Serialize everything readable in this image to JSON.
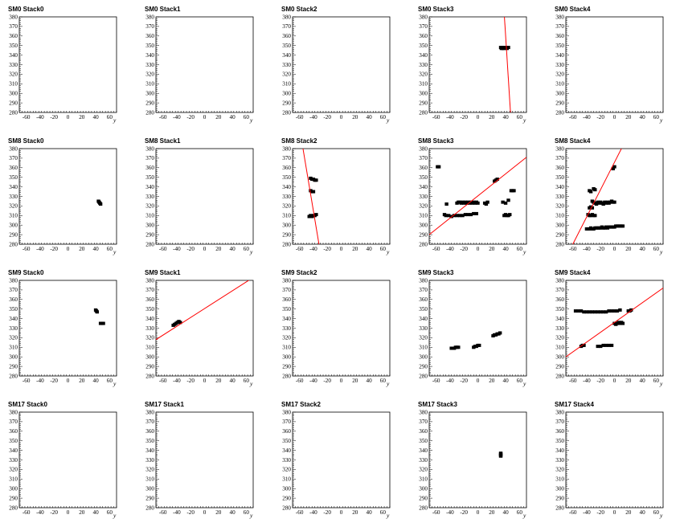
{
  "chart_data": {
    "type": "scatter",
    "layout": {
      "rows": 4,
      "cols": 5
    },
    "xlim": [
      -70,
      70
    ],
    "ylim": [
      280,
      380
    ],
    "xticks": [
      -60,
      -40,
      -20,
      0,
      20,
      40,
      60
    ],
    "yticks": [
      280,
      290,
      300,
      310,
      320,
      330,
      340,
      350,
      360,
      370,
      380
    ],
    "xlabel": "y",
    "ylabel": "",
    "marker_color": "#000000",
    "fit_color": "#ff0000",
    "panels": [
      {
        "title": "SM0 Stack0",
        "points": [],
        "fit": null
      },
      {
        "title": "SM0 Stack1",
        "points": [],
        "fit": null
      },
      {
        "title": "SM0 Stack2",
        "points": [],
        "fit": null
      },
      {
        "title": "SM0 Stack3",
        "points": [
          [
            33,
            348
          ],
          [
            34,
            347
          ],
          [
            35,
            348
          ],
          [
            36,
            347
          ],
          [
            37,
            348
          ],
          [
            38,
            347
          ],
          [
            39,
            348
          ],
          [
            41,
            348
          ],
          [
            42,
            347
          ],
          [
            44,
            348
          ]
        ],
        "fit": [
          [
            38,
            383
          ],
          [
            47,
            280
          ]
        ]
      },
      {
        "title": "SM0 Stack4",
        "points": [],
        "fit": null
      },
      {
        "title": "SM8 Stack0",
        "points": [
          [
            44,
            325
          ],
          [
            45,
            324
          ],
          [
            46,
            323
          ],
          [
            47,
            322
          ]
        ],
        "fit": null
      },
      {
        "title": "SM8 Stack1",
        "points": [],
        "fit": null
      },
      {
        "title": "SM8 Stack2",
        "points": [
          [
            -44,
            336
          ],
          [
            -42,
            335
          ],
          [
            -40,
            335
          ],
          [
            -44,
            349
          ],
          [
            -42,
            348
          ],
          [
            -40,
            348
          ],
          [
            -38,
            347
          ],
          [
            -36,
            347
          ],
          [
            -46,
            309
          ],
          [
            -44,
            310
          ],
          [
            -42,
            309
          ],
          [
            -40,
            310
          ],
          [
            -38,
            310
          ],
          [
            -36,
            311
          ]
        ],
        "fit": [
          [
            -55,
            380
          ],
          [
            -32,
            280
          ]
        ]
      },
      {
        "title": "SM8 Stack3",
        "points": [
          [
            -58,
            361
          ],
          [
            -56,
            361
          ],
          [
            -45,
            322
          ],
          [
            -48,
            311
          ],
          [
            -46,
            310
          ],
          [
            -42,
            310
          ],
          [
            -38,
            309
          ],
          [
            -34,
            310
          ],
          [
            -30,
            310
          ],
          [
            -26,
            310
          ],
          [
            -22,
            310
          ],
          [
            -18,
            311
          ],
          [
            -14,
            311
          ],
          [
            -10,
            311
          ],
          [
            -6,
            312
          ],
          [
            -2,
            312
          ],
          [
            -30,
            323
          ],
          [
            -28,
            324
          ],
          [
            -26,
            324
          ],
          [
            -24,
            323
          ],
          [
            -22,
            324
          ],
          [
            -20,
            323
          ],
          [
            -18,
            324
          ],
          [
            -16,
            323
          ],
          [
            -14,
            324
          ],
          [
            -12,
            323
          ],
          [
            -10,
            324
          ],
          [
            -8,
            323
          ],
          [
            -6,
            324
          ],
          [
            -4,
            323
          ],
          [
            -2,
            324
          ],
          [
            0,
            323
          ],
          [
            10,
            323
          ],
          [
            12,
            322
          ],
          [
            14,
            324
          ],
          [
            24,
            346
          ],
          [
            26,
            347
          ],
          [
            28,
            348
          ],
          [
            38,
            310
          ],
          [
            40,
            311
          ],
          [
            42,
            310
          ],
          [
            44,
            310
          ],
          [
            46,
            311
          ],
          [
            44,
            326
          ],
          [
            48,
            336
          ],
          [
            50,
            336
          ],
          [
            52,
            336
          ],
          [
            36,
            324
          ],
          [
            40,
            323
          ]
        ],
        "fit": [
          [
            -70,
            290
          ],
          [
            70,
            371
          ]
        ]
      },
      {
        "title": "SM8 Stack4",
        "points": [
          [
            -38,
            311
          ],
          [
            -36,
            310
          ],
          [
            -34,
            310
          ],
          [
            -32,
            311
          ],
          [
            -30,
            310
          ],
          [
            -28,
            310
          ],
          [
            -36,
            336
          ],
          [
            -34,
            335
          ],
          [
            -30,
            338
          ],
          [
            -28,
            337
          ],
          [
            -32,
            325
          ],
          [
            -30,
            324
          ],
          [
            -28,
            323
          ],
          [
            -26,
            322
          ],
          [
            -24,
            324
          ],
          [
            -22,
            323
          ],
          [
            -20,
            324
          ],
          [
            -18,
            323
          ],
          [
            -16,
            322
          ],
          [
            -14,
            324
          ],
          [
            -12,
            323
          ],
          [
            -10,
            324
          ],
          [
            -8,
            323
          ],
          [
            -6,
            324
          ],
          [
            -4,
            325
          ],
          [
            -2,
            324
          ],
          [
            0,
            324
          ],
          [
            -2,
            359
          ],
          [
            0,
            361
          ],
          [
            -40,
            296
          ],
          [
            -38,
            296
          ],
          [
            -36,
            296
          ],
          [
            -34,
            297
          ],
          [
            -32,
            296
          ],
          [
            -30,
            296
          ],
          [
            -28,
            297
          ],
          [
            -26,
            297
          ],
          [
            -24,
            297
          ],
          [
            -22,
            297
          ],
          [
            -20,
            297
          ],
          [
            -18,
            298
          ],
          [
            -16,
            297
          ],
          [
            -14,
            297
          ],
          [
            -12,
            298
          ],
          [
            -10,
            297
          ],
          [
            -8,
            298
          ],
          [
            -6,
            298
          ],
          [
            -4,
            298
          ],
          [
            -2,
            298
          ],
          [
            0,
            298
          ],
          [
            2,
            299
          ],
          [
            4,
            299
          ],
          [
            6,
            299
          ],
          [
            8,
            299
          ],
          [
            10,
            299
          ],
          [
            12,
            299
          ],
          [
            -36,
            318
          ],
          [
            -34,
            319
          ],
          [
            -32,
            318
          ]
        ],
        "fit": [
          [
            -60,
            280
          ],
          [
            10,
            380
          ]
        ]
      },
      {
        "title": "SM9 Stack0",
        "points": [
          [
            40,
            349
          ],
          [
            41,
            348
          ],
          [
            42,
            347
          ],
          [
            47,
            335
          ],
          [
            49,
            335
          ],
          [
            51,
            335
          ]
        ],
        "fit": null
      },
      {
        "title": "SM9 Stack1",
        "points": [
          [
            -45,
            333
          ],
          [
            -43,
            334
          ],
          [
            -41,
            335
          ],
          [
            -39,
            336
          ],
          [
            -37,
            337
          ],
          [
            -35,
            336
          ]
        ],
        "fit": [
          [
            -70,
            318
          ],
          [
            70,
            383
          ]
        ]
      },
      {
        "title": "SM9 Stack2",
        "points": [],
        "fit": null
      },
      {
        "title": "SM9 Stack3",
        "points": [
          [
            -38,
            309
          ],
          [
            -36,
            309
          ],
          [
            -34,
            309
          ],
          [
            -32,
            310
          ],
          [
            -30,
            310
          ],
          [
            -28,
            310
          ],
          [
            -6,
            310
          ],
          [
            -4,
            311
          ],
          [
            -2,
            311
          ],
          [
            0,
            312
          ],
          [
            2,
            312
          ],
          [
            22,
            322
          ],
          [
            24,
            323
          ],
          [
            26,
            323
          ],
          [
            28,
            324
          ],
          [
            30,
            324
          ],
          [
            32,
            325
          ]
        ],
        "fit": null
      },
      {
        "title": "SM9 Stack4",
        "points": [
          [
            -56,
            348
          ],
          [
            -52,
            348
          ],
          [
            -48,
            348
          ],
          [
            -44,
            347
          ],
          [
            -40,
            347
          ],
          [
            -36,
            347
          ],
          [
            -32,
            347
          ],
          [
            -28,
            347
          ],
          [
            -24,
            347
          ],
          [
            -20,
            347
          ],
          [
            -16,
            347
          ],
          [
            -12,
            347
          ],
          [
            -8,
            348
          ],
          [
            -4,
            348
          ],
          [
            0,
            348
          ],
          [
            4,
            348
          ],
          [
            8,
            349
          ],
          [
            20,
            348
          ],
          [
            22,
            348
          ],
          [
            24,
            349
          ],
          [
            -48,
            311
          ],
          [
            -46,
            312
          ],
          [
            -44,
            312
          ],
          [
            -24,
            311
          ],
          [
            -20,
            311
          ],
          [
            -16,
            312
          ],
          [
            -12,
            312
          ],
          [
            -8,
            312
          ],
          [
            -4,
            312
          ],
          [
            0,
            335
          ],
          [
            2,
            334
          ],
          [
            4,
            335
          ],
          [
            6,
            336
          ],
          [
            8,
            335
          ],
          [
            10,
            336
          ],
          [
            12,
            335
          ]
        ],
        "fit": [
          [
            -70,
            300
          ],
          [
            70,
            372
          ]
        ]
      },
      {
        "title": "SM17 Stack0",
        "points": [],
        "fit": null
      },
      {
        "title": "SM17 Stack1",
        "points": [],
        "fit": null
      },
      {
        "title": "SM17 Stack2",
        "points": [],
        "fit": null
      },
      {
        "title": "SM17 Stack3",
        "points": [
          [
            33,
            337
          ],
          [
            33,
            336
          ],
          [
            33,
            335
          ],
          [
            33,
            334
          ]
        ],
        "fit": null
      },
      {
        "title": "SM17 Stack4",
        "points": [],
        "fit": null
      }
    ]
  }
}
